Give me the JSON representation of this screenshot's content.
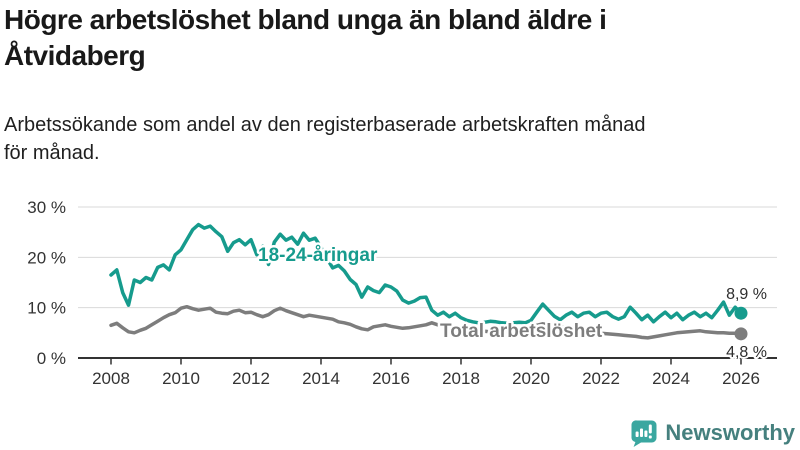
{
  "chart_data": {
    "type": "line",
    "title_lines": [
      "Högre arbetslöshet bland unga än bland äldre i",
      "Åtvidaberg"
    ],
    "subtitle_lines": [
      "Arbetssökande som andel av den registerbaserade arbetskraften månad",
      "för månad."
    ],
    "x_axis": {
      "unit": "year",
      "start_year": 2008,
      "points_per_year": 6,
      "resolution": "bi-monthly estimate of monthly data",
      "label_years": [
        2008,
        2010,
        2012,
        2014,
        2016,
        2018,
        2020,
        2022,
        2024,
        2026
      ]
    },
    "y_axis": {
      "ticks_pct": [
        0,
        10,
        20,
        30
      ],
      "tick_suffix": " %",
      "range_pct": [
        0,
        30
      ],
      "grid": true
    },
    "legend_position": "inline-labels",
    "series": [
      {
        "name": "18-24-åringar",
        "color": "#169B8D",
        "end_label": "8,9 %",
        "end_value_pct": 8.9,
        "values_pct": [
          16.5,
          17.5,
          13.0,
          10.5,
          15.5,
          15.0,
          16.0,
          15.5,
          18.0,
          18.5,
          17.5,
          20.5,
          21.5,
          23.5,
          25.5,
          26.5,
          25.8,
          26.2,
          25.1,
          24.1,
          21.2,
          22.9,
          23.5,
          22.5,
          23.5,
          20.5,
          22.2,
          18.6,
          23.0,
          24.6,
          23.4,
          24.0,
          22.6,
          24.8,
          23.4,
          23.8,
          22.0,
          19.8,
          17.9,
          18.4,
          17.3,
          15.6,
          14.6,
          12.1,
          14.1,
          13.4,
          13.0,
          14.5,
          14.1,
          13.3,
          11.5,
          10.9,
          11.3,
          12.0,
          12.1,
          9.5,
          8.5,
          9.1,
          8.2,
          8.9,
          8.0,
          7.5,
          7.2,
          7.0,
          7.1,
          7.3,
          7.2,
          7.0,
          6.9,
          7.0,
          7.1,
          7.0,
          7.5,
          9.1,
          10.7,
          9.5,
          8.3,
          7.6,
          8.5,
          9.1,
          8.2,
          8.9,
          9.1,
          8.2,
          8.9,
          9.1,
          8.2,
          7.7,
          8.2,
          10.1,
          8.9,
          7.6,
          8.5,
          7.2,
          8.2,
          9.1,
          8.0,
          8.9,
          7.6,
          8.5,
          9.1,
          8.2,
          8.9,
          8.0,
          9.5,
          11.1,
          8.5,
          10.1,
          8.9
        ]
      },
      {
        "name": "Total arbetslöshet",
        "color": "#7D7D7D",
        "end_label": "4,8 %",
        "end_value_pct": 4.8,
        "values_pct": [
          6.5,
          6.9,
          6.0,
          5.2,
          5.0,
          5.5,
          5.9,
          6.6,
          7.3,
          8.0,
          8.6,
          9.0,
          9.9,
          10.2,
          9.8,
          9.5,
          9.7,
          9.9,
          9.1,
          8.9,
          8.8,
          9.3,
          9.5,
          9.0,
          9.1,
          8.6,
          8.2,
          8.6,
          9.4,
          9.9,
          9.4,
          9.0,
          8.6,
          8.2,
          8.5,
          8.3,
          8.1,
          7.9,
          7.7,
          7.2,
          7.0,
          6.7,
          6.2,
          5.8,
          5.6,
          6.2,
          6.4,
          6.6,
          6.3,
          6.1,
          5.9,
          6.0,
          6.2,
          6.4,
          6.6,
          7.0,
          6.6,
          6.4,
          6.2,
          6.0,
          5.8,
          5.6,
          5.5,
          5.4,
          5.3,
          5.2,
          5.2,
          5.1,
          5.2,
          5.3,
          5.5,
          5.7,
          6.0,
          6.5,
          6.8,
          6.6,
          6.4,
          6.2,
          6.0,
          5.8,
          5.6,
          5.4,
          5.2,
          5.0,
          4.9,
          4.8,
          4.7,
          4.6,
          4.5,
          4.4,
          4.3,
          4.1,
          4.0,
          4.2,
          4.4,
          4.6,
          4.8,
          5.0,
          5.1,
          5.2,
          5.3,
          5.4,
          5.2,
          5.1,
          5.0,
          5.0,
          4.9,
          4.9,
          4.8
        ]
      }
    ],
    "colors": {
      "grid": "#dadada",
      "axis": "#333333",
      "value_label": "#2e2e2e"
    }
  },
  "branding": {
    "logo_text": "Newsworthy",
    "logo_icon": "newsworthy-chart-bubble-icon",
    "icon_color": "#3AA7A0",
    "text_color": "#45807E"
  }
}
